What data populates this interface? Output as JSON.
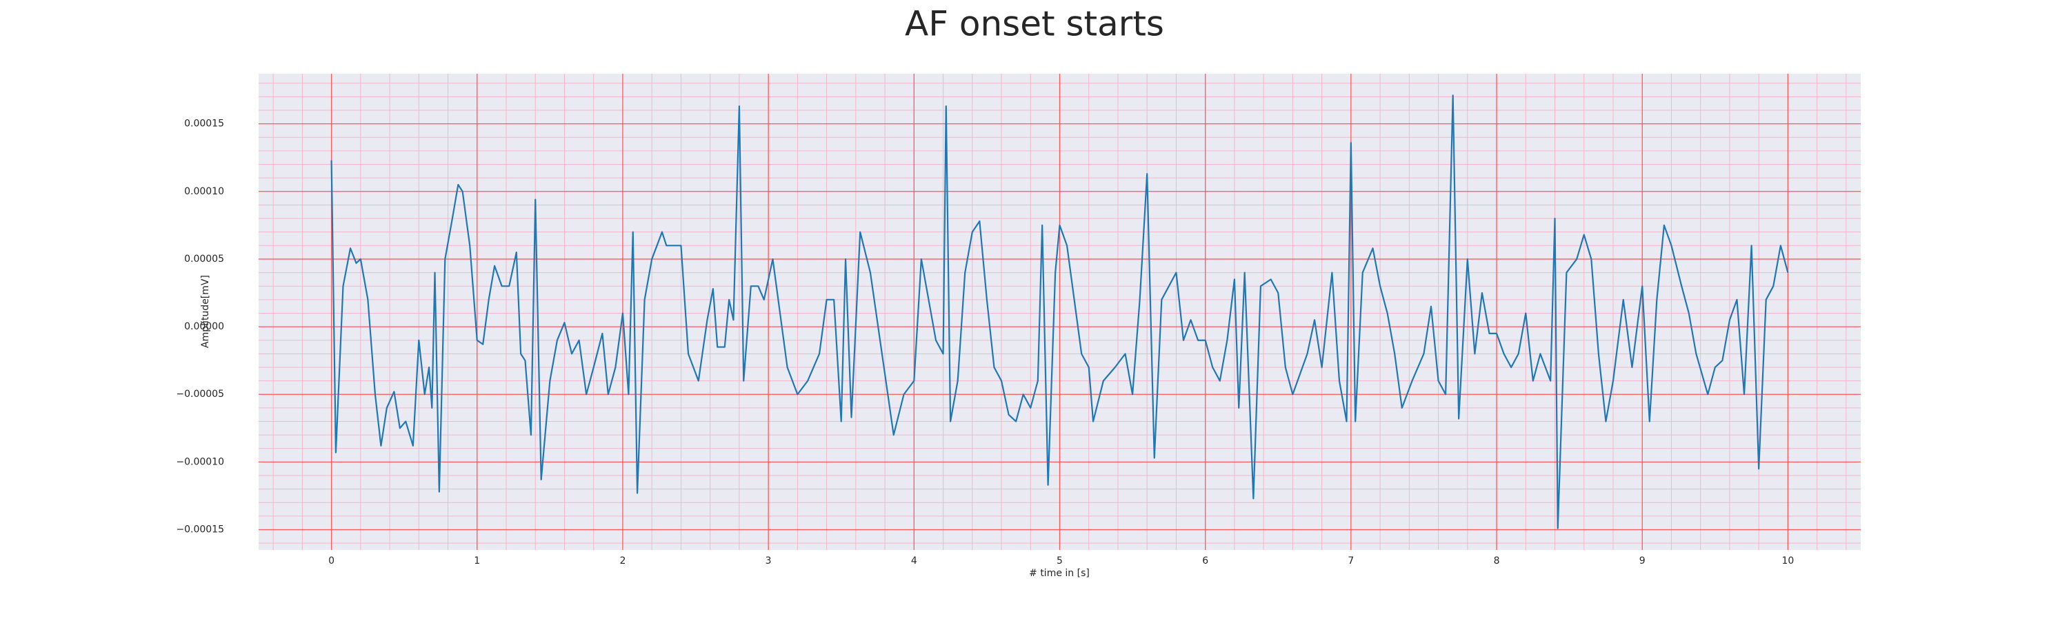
{
  "chart_data": {
    "type": "line",
    "title": "AF onset starts",
    "xlabel": "# time in [s]",
    "ylabel": "Amplitude[mV]",
    "color": "#1f77b4",
    "grid": true,
    "xlim": [
      -0.5,
      10.5
    ],
    "ylim": [
      -0.000165,
      0.000187
    ],
    "xticks": [
      0,
      1,
      2,
      3,
      4,
      5,
      6,
      7,
      8,
      9,
      10
    ],
    "yticks": [
      {
        "value": -0.00015,
        "label": "−0.00015"
      },
      {
        "value": -0.0001,
        "label": "−0.00010"
      },
      {
        "value": -5e-05,
        "label": "−0.00005"
      },
      {
        "value": 0,
        "label": "0.00000"
      },
      {
        "value": 5e-05,
        "label": "0.00005"
      },
      {
        "value": 0.0001,
        "label": "0.00010"
      },
      {
        "value": 0.00015,
        "label": "0.00015"
      }
    ],
    "x": [
      0,
      0.03,
      0.08,
      0.13,
      0.17,
      0.2,
      0.25,
      0.3,
      0.34,
      0.38,
      0.43,
      0.47,
      0.51,
      0.56,
      0.6,
      0.64,
      0.67,
      0.69,
      0.71,
      0.74,
      0.78,
      0.83,
      0.87,
      0.9,
      0.95,
      1.0,
      1.04,
      1.08,
      1.12,
      1.17,
      1.22,
      1.27,
      1.3,
      1.33,
      1.37,
      1.4,
      1.44,
      1.5,
      1.55,
      1.6,
      1.65,
      1.7,
      1.75,
      1.8,
      1.86,
      1.9,
      1.95,
      2.0,
      2.04,
      2.07,
      2.1,
      2.15,
      2.2,
      2.27,
      2.3,
      2.4,
      2.45,
      2.52,
      2.58,
      2.62,
      2.65,
      2.7,
      2.73,
      2.76,
      2.8,
      2.83,
      2.88,
      2.93,
      2.97,
      3.03,
      3.08,
      3.13,
      3.2,
      3.27,
      3.35,
      3.4,
      3.45,
      3.5,
      3.53,
      3.57,
      3.63,
      3.7,
      3.78,
      3.86,
      3.93,
      4.0,
      4.05,
      4.1,
      4.15,
      4.2,
      4.22,
      4.25,
      4.3,
      4.35,
      4.4,
      4.45,
      4.5,
      4.55,
      4.6,
      4.65,
      4.7,
      4.75,
      4.8,
      4.85,
      4.88,
      4.92,
      4.97,
      5.0,
      5.05,
      5.1,
      5.15,
      5.2,
      5.23,
      5.3,
      5.38,
      5.45,
      5.5,
      5.55,
      5.6,
      5.65,
      5.7,
      5.75,
      5.8,
      5.85,
      5.9,
      5.95,
      6.0,
      6.05,
      6.1,
      6.15,
      6.2,
      6.23,
      6.27,
      6.33,
      6.38,
      6.45,
      6.5,
      6.55,
      6.6,
      6.7,
      6.75,
      6.8,
      6.87,
      6.92,
      6.97,
      7.0,
      7.03,
      7.08,
      7.15,
      7.2,
      7.25,
      7.3,
      7.35,
      7.42,
      7.5,
      7.55,
      7.6,
      7.65,
      7.7,
      7.74,
      7.8,
      7.85,
      7.9,
      7.95,
      8.0,
      8.05,
      8.1,
      8.15,
      8.2,
      8.25,
      8.3,
      8.37,
      8.4,
      8.42,
      8.48,
      8.55,
      8.6,
      8.65,
      8.7,
      8.75,
      8.8,
      8.87,
      8.93,
      9.0,
      9.05,
      9.1,
      9.15,
      9.2,
      9.27,
      9.32,
      9.37,
      9.45,
      9.5,
      9.55,
      9.6,
      9.65,
      9.7,
      9.75,
      9.8,
      9.85,
      9.9,
      9.95,
      10.0
    ],
    "values": [
      0.000123,
      -9.3e-05,
      3e-05,
      5.8e-05,
      4.7e-05,
      5e-05,
      2e-05,
      -5e-05,
      -8.8e-05,
      -6e-05,
      -4.8e-05,
      -7.5e-05,
      -7e-05,
      -8.8e-05,
      -1e-05,
      -5e-05,
      -3e-05,
      -6e-05,
      4e-05,
      -0.000122,
      5e-05,
      8e-05,
      0.000105,
      0.0001,
      6e-05,
      -1e-05,
      -1.3e-05,
      2e-05,
      4.5e-05,
      3e-05,
      3e-05,
      5.5e-05,
      -2e-05,
      -2.5e-05,
      -8e-05,
      9.4e-05,
      -0.000113,
      -4e-05,
      -1e-05,
      3e-06,
      -2e-05,
      -1e-05,
      -5e-05,
      -3e-05,
      -5e-06,
      -5e-05,
      -3e-05,
      1e-05,
      -5e-05,
      7e-05,
      -0.000123,
      2e-05,
      5e-05,
      7e-05,
      6e-05,
      6e-05,
      -2e-05,
      -4e-05,
      5e-06,
      2.8e-05,
      -1.5e-05,
      -1.5e-05,
      2e-05,
      5e-06,
      0.000163,
      -4e-05,
      3e-05,
      3e-05,
      2e-05,
      5e-05,
      1e-05,
      -3e-05,
      -5e-05,
      -4e-05,
      -2e-05,
      2e-05,
      2e-05,
      -7e-05,
      5e-05,
      -6.7e-05,
      7e-05,
      4e-05,
      -2e-05,
      -8e-05,
      -5e-05,
      -4e-05,
      5e-05,
      2e-05,
      -1e-05,
      -2e-05,
      0.000163,
      -7e-05,
      -4e-05,
      4e-05,
      7e-05,
      7.8e-05,
      2e-05,
      -3e-05,
      -4e-05,
      -6.5e-05,
      -7e-05,
      -5e-05,
      -6e-05,
      -4e-05,
      7.5e-05,
      -0.000117,
      4e-05,
      7.5e-05,
      6e-05,
      2e-05,
      -2e-05,
      -3e-05,
      -7e-05,
      -4e-05,
      -3e-05,
      -2e-05,
      -5e-05,
      2e-05,
      0.000113,
      -9.7e-05,
      2e-05,
      3e-05,
      4e-05,
      -1e-05,
      5e-06,
      -1e-05,
      -1e-05,
      -3e-05,
      -4e-05,
      -1e-05,
      3.5e-05,
      -6e-05,
      4e-05,
      -0.000127,
      3e-05,
      3.5e-05,
      2.5e-05,
      -3e-05,
      -5e-05,
      -2e-05,
      5e-06,
      -3e-05,
      4e-05,
      -4e-05,
      -7e-05,
      0.000136,
      -7e-05,
      4e-05,
      5.8e-05,
      3e-05,
      1e-05,
      -2e-05,
      -6e-05,
      -4e-05,
      -2e-05,
      1.5e-05,
      -4e-05,
      -5e-05,
      0.000171,
      -6.8e-05,
      5e-05,
      -2e-05,
      2.5e-05,
      -5e-06,
      -5e-06,
      -2e-05,
      -3e-05,
      -2e-05,
      1e-05,
      -4e-05,
      -2e-05,
      -4e-05,
      8e-05,
      -0.000149,
      4e-05,
      5e-05,
      6.8e-05,
      5e-05,
      -2e-05,
      -7e-05,
      -4e-05,
      2e-05,
      -3e-05,
      3e-05,
      -7e-05,
      2e-05,
      7.5e-05,
      6e-05,
      3e-05,
      1e-05,
      -2e-05,
      -5e-05,
      -3e-05,
      -2.5e-05,
      5e-06,
      2e-05,
      -5e-05,
      6e-05,
      -0.000105,
      2e-05,
      3e-05,
      6e-05,
      4e-05
    ]
  }
}
